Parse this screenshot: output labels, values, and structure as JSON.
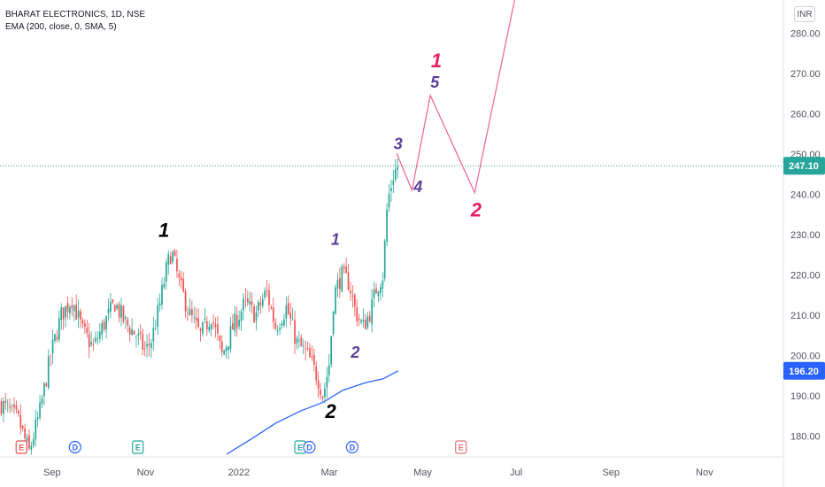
{
  "legend": {
    "symbol_line": "BHARAT ELECTRONICS, 1D, NSE",
    "indicator_line": "EMA (200, close, 0, SMA, 5)"
  },
  "currency_label": "INR",
  "colors": {
    "up": "#26a69a",
    "down": "#ef5350",
    "ema": "#2962ff",
    "projection": "#f06292",
    "wave_purple": "#5b3f99",
    "wave_red": "#e91e63",
    "wave_black": "#000000",
    "last_price_bg": "#26a69a",
    "ema_price_bg": "#2962ff"
  },
  "chart_data": {
    "type": "candlestick",
    "symbol": "BHARAT ELECTRONICS",
    "interval": "1D",
    "exchange": "NSE",
    "y_axis": {
      "min": 175,
      "max": 285,
      "ticks": [
        180,
        190,
        200,
        210,
        220,
        230,
        240,
        250,
        260,
        270,
        280
      ],
      "position": "right"
    },
    "x_axis": {
      "labels": [
        "Sep",
        "Nov",
        "2022",
        "Mar",
        "May",
        "Jul",
        "Sep",
        "Nov"
      ]
    },
    "last_price": {
      "value": 247.1,
      "label": "247.10"
    },
    "ema_price": {
      "value": 196.2,
      "label": "196.20"
    },
    "price_series_anchors": [
      [
        "2021-07-30",
        188
      ],
      [
        "2021-08-10",
        184
      ],
      [
        "2021-08-17",
        176
      ],
      [
        "2021-08-24",
        186
      ],
      [
        "2021-08-31",
        200
      ],
      [
        "2021-09-07",
        210
      ],
      [
        "2021-09-14",
        214
      ],
      [
        "2021-09-21",
        206
      ],
      [
        "2021-09-28",
        202
      ],
      [
        "2021-10-05",
        208
      ],
      [
        "2021-10-12",
        213
      ],
      [
        "2021-10-19",
        208
      ],
      [
        "2021-10-26",
        205
      ],
      [
        "2021-11-01",
        201
      ],
      [
        "2021-11-05",
        204
      ],
      [
        "2021-11-10",
        212
      ],
      [
        "2021-11-15",
        222
      ],
      [
        "2021-11-18",
        226
      ],
      [
        "2021-11-23",
        218
      ],
      [
        "2021-11-30",
        210
      ],
      [
        "2021-12-07",
        205
      ],
      [
        "2021-12-14",
        210
      ],
      [
        "2021-12-21",
        200
      ],
      [
        "2021-12-28",
        207
      ],
      [
        "2022-01-05",
        213
      ],
      [
        "2022-01-12",
        210
      ],
      [
        "2022-01-19",
        216
      ],
      [
        "2022-01-25",
        207
      ],
      [
        "2022-02-01",
        212
      ],
      [
        "2022-02-08",
        203
      ],
      [
        "2022-02-15",
        200
      ],
      [
        "2022-02-22",
        194
      ],
      [
        "2022-02-25",
        190
      ],
      [
        "2022-03-01",
        198
      ],
      [
        "2022-03-04",
        215
      ],
      [
        "2022-03-09",
        220
      ],
      [
        "2022-03-14",
        218
      ],
      [
        "2022-03-18",
        211
      ],
      [
        "2022-03-23",
        207
      ],
      [
        "2022-03-28",
        211
      ],
      [
        "2022-04-01",
        217
      ],
      [
        "2022-04-05",
        220
      ],
      [
        "2022-04-08",
        238
      ],
      [
        "2022-04-12",
        245
      ],
      [
        "2022-04-15",
        247.1
      ]
    ],
    "ema_series": [
      [
        "2021-12-24",
        175.5
      ],
      [
        "2022-01-10",
        179.5
      ],
      [
        "2022-01-25",
        183.2
      ],
      [
        "2022-02-10",
        186.2
      ],
      [
        "2022-02-25",
        188.4
      ],
      [
        "2022-03-10",
        191.4
      ],
      [
        "2022-03-25",
        193.3
      ],
      [
        "2022-04-05",
        194.2
      ],
      [
        "2022-04-15",
        196.2
      ]
    ],
    "projection_path": [
      [
        "2022-04-14",
        250.2
      ],
      [
        "2022-04-24",
        241
      ],
      [
        "2022-05-06",
        264.6
      ],
      [
        "2022-06-04",
        240.4
      ],
      [
        "2022-07-01",
        290
      ]
    ],
    "annotations": [
      {
        "text": "1",
        "date": "2021-11-13",
        "price": 229.5,
        "color_key": "wave_black",
        "size": 22
      },
      {
        "text": "2",
        "date": "2022-03-02",
        "price": 184.5,
        "color_key": "wave_black",
        "size": 22
      },
      {
        "text": "1",
        "date": "2022-03-05",
        "price": 227.5,
        "color_key": "wave_purple",
        "size": 18
      },
      {
        "text": "2",
        "date": "2022-03-18",
        "price": 199.5,
        "color_key": "wave_purple",
        "size": 18
      },
      {
        "text": "3",
        "date": "2022-04-15",
        "price": 251.2,
        "color_key": "wave_purple",
        "size": 18
      },
      {
        "text": "4",
        "date": "2022-04-28",
        "price": 240.5,
        "color_key": "wave_purple",
        "size": 18
      },
      {
        "text": "5",
        "date": "2022-05-09",
        "price": 266.5,
        "color_key": "wave_purple",
        "size": 18
      },
      {
        "text": "1",
        "date": "2022-05-10",
        "price": 271.5,
        "color_key": "wave_red",
        "size": 22
      },
      {
        "text": "2",
        "date": "2022-06-05",
        "price": 234.5,
        "color_key": "wave_red",
        "size": 22
      }
    ],
    "event_markers": [
      {
        "type": "E",
        "date": "2021-08-12"
      },
      {
        "type": "D",
        "date": "2021-09-16"
      },
      {
        "type": "E",
        "date": "2021-10-27"
      },
      {
        "type": "E",
        "date": "2022-02-10"
      },
      {
        "type": "D",
        "date": "2022-02-16"
      },
      {
        "type": "D",
        "date": "2022-03-16"
      },
      {
        "type": "E",
        "date": "2022-05-26"
      }
    ]
  }
}
